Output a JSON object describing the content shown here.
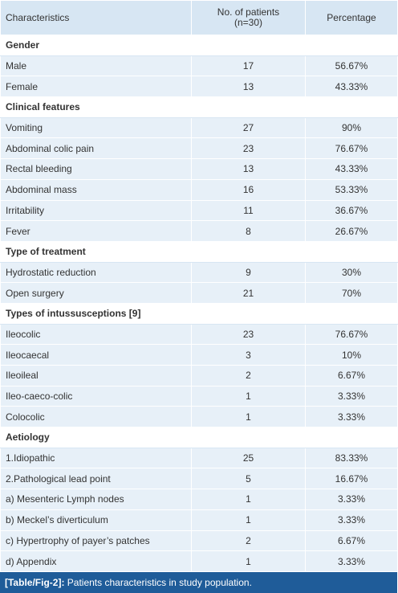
{
  "table": {
    "header": [
      "Characteristics",
      "No. of patients\n(n=30)",
      "Percentage"
    ],
    "sections": [
      {
        "title": "Gender",
        "rows": [
          [
            "Male",
            17,
            "56.67%"
          ],
          [
            "Female",
            13,
            "43.33%"
          ]
        ]
      },
      {
        "title": "Clinical features",
        "rows": [
          [
            "Vomiting",
            27,
            "90%"
          ],
          [
            "Abdominal colic pain",
            23,
            "76.67%"
          ],
          [
            "Rectal bleeding",
            13,
            "43.33%"
          ],
          [
            "Abdominal mass",
            16,
            "53.33%"
          ],
          [
            "Irritability",
            11,
            "36.67%"
          ],
          [
            "Fever",
            8,
            "26.67%"
          ]
        ]
      },
      {
        "title": "Type of treatment",
        "rows": [
          [
            "Hydrostatic reduction",
            9,
            "30%"
          ],
          [
            "Open surgery",
            21,
            "70%"
          ]
        ]
      },
      {
        "title": "Types of intussusceptions [9]",
        "rows": [
          [
            "Ileocolic",
            23,
            "76.67%"
          ],
          [
            "Ileocaecal",
            3,
            "10%"
          ],
          [
            "Ileoileal",
            2,
            "6.67%"
          ],
          [
            "Ileo-caeco-colic",
            1,
            "3.33%"
          ],
          [
            "Colocolic",
            1,
            "3.33%"
          ]
        ]
      },
      {
        "title": "Aetiology",
        "rows": [
          [
            "1.Idiopathic",
            25,
            "83.33%"
          ],
          [
            "2.Pathological lead point",
            5,
            "16.67%"
          ],
          [
            "a) Mesenteric Lymph nodes",
            1,
            "3.33%"
          ],
          [
            "b) Meckel’s diverticulum",
            1,
            "3.33%"
          ],
          [
            "c) Hypertrophy of payer’s patches",
            2,
            "6.67%"
          ],
          [
            "d) Appendix",
            1,
            "3.33%"
          ]
        ]
      }
    ],
    "caption": {
      "label": "[Table/Fig-2]:",
      "text": "Patients characteristics in study population."
    }
  }
}
